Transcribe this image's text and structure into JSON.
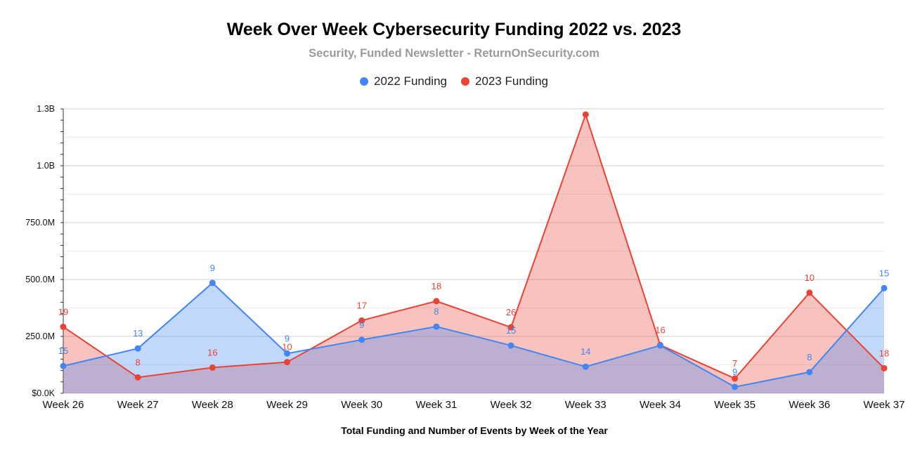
{
  "chart_data": {
    "type": "area",
    "title": "Week Over Week Cybersecurity Funding 2022 vs. 2023",
    "subtitle": "Security, Funded Newsletter - ReturnOnSecurity.com",
    "xlabel": "Total Funding and Number of Events by Week of the Year",
    "ylabel": "",
    "categories": [
      "Week 26",
      "Week 27",
      "Week 28",
      "Week 29",
      "Week 30",
      "Week 31",
      "Week 32",
      "Week 33",
      "Week 34",
      "Week 35",
      "Week 36",
      "Week 37"
    ],
    "ylim": [
      0,
      1250000000
    ],
    "yticks": [
      {
        "value": 0,
        "label": "$0.0K"
      },
      {
        "value": 250000000,
        "label": "250.0M"
      },
      {
        "value": 500000000,
        "label": "500.0M"
      },
      {
        "value": 750000000,
        "label": "750.0M"
      },
      {
        "value": 1000000000,
        "label": "1.0B"
      },
      {
        "value": 1250000000,
        "label": "1.3B"
      }
    ],
    "grid": true,
    "legend_position": "top",
    "series": [
      {
        "name": "2022 Funding",
        "color": "#4285f4",
        "values": [
          120000000,
          197000000,
          485000000,
          175000000,
          235000000,
          293000000,
          210000000,
          117000000,
          210000000,
          28000000,
          93000000,
          462000000
        ],
        "labels": [
          "15",
          "13",
          "9",
          "9",
          "9",
          "8",
          "15",
          "14",
          "",
          "9",
          "8",
          "15"
        ]
      },
      {
        "name": "2023 Funding",
        "color": "#ea4335",
        "values": [
          292000000,
          70000000,
          113000000,
          137000000,
          320000000,
          405000000,
          290000000,
          1225000000,
          212000000,
          65000000,
          442000000,
          110000000
        ],
        "labels": [
          "19",
          "8",
          "16",
          "10",
          "17",
          "18",
          "26",
          "",
          "16",
          "7",
          "10",
          "18"
        ]
      }
    ]
  }
}
